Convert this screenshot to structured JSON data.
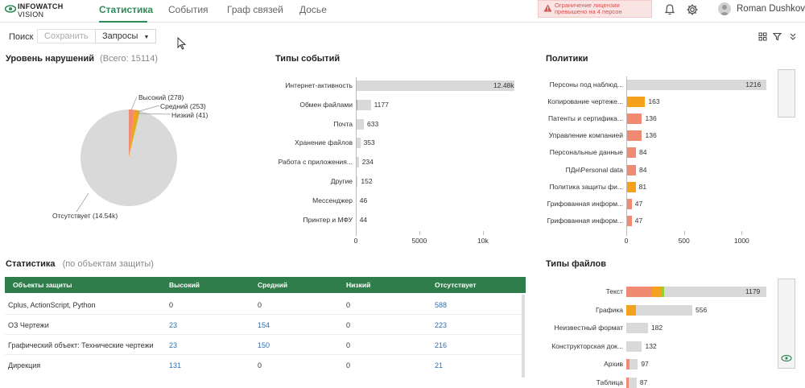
{
  "app": {
    "logo_line1": "INFOWATCH",
    "logo_line2": "VISION"
  },
  "nav": {
    "tabs": [
      "Статистика",
      "События",
      "Граф связей",
      "Досье"
    ]
  },
  "alert": {
    "line1": "Ограничение лицензии",
    "line2": "превышено на 4 персон"
  },
  "user": {
    "name": "Roman Dushkov"
  },
  "toolbar": {
    "search": "Поиск",
    "save": "Сохранить",
    "queries": "Запросы"
  },
  "violations": {
    "title": "Уровень нарушений",
    "total": "(Всего: 15114)",
    "labels": {
      "high": "Высокий (278)",
      "medium": "Средний (253)",
      "low": "Низкий (41)",
      "none": "Отсутствует (14.54k)"
    }
  },
  "event_types": {
    "title": "Типы событий",
    "ticks": [
      "0",
      "5000",
      "10k"
    ]
  },
  "policies": {
    "title": "Политики",
    "ticks": [
      "0",
      "500",
      "1000"
    ]
  },
  "file_types": {
    "title": "Типы файлов"
  },
  "stats": {
    "title": "Статистика",
    "subtitle": "(по объектам защиты)",
    "columns": [
      "Объекты защиты",
      "Высокий",
      "Средний",
      "Низкий",
      "Отсутствует"
    ],
    "rows": [
      [
        "Cplus, ActionScript, Python",
        "0",
        "0",
        "0",
        "588"
      ],
      [
        "ОЗ Чертежи",
        "23",
        "154",
        "0",
        "223"
      ],
      [
        "Графический объект: Технические чертежи",
        "23",
        "150",
        "0",
        "216"
      ],
      [
        "Дирекция",
        "131",
        "0",
        "0",
        "21"
      ]
    ]
  },
  "colors": {
    "accent": "#2e8b57",
    "table_header": "#2e7d4a",
    "high": "#f08a72",
    "medium": "#f4a21e",
    "low": "#9acd32",
    "none": "#d9d9d9"
  },
  "chart_data": [
    {
      "type": "pie",
      "title": "Уровень нарушений",
      "categories": [
        "Высокий",
        "Средний",
        "Низкий",
        "Отсутствует"
      ],
      "values": [
        278,
        253,
        41,
        14540
      ]
    },
    {
      "type": "bar",
      "title": "Типы событий",
      "orientation": "horizontal",
      "categories": [
        "Интернет-активность",
        "Обмен файлами",
        "Почта",
        "Хранение файлов",
        "Работа с приложения...",
        "Другие",
        "Мессенджер",
        "Принтер и МФУ"
      ],
      "series": [
        {
          "values": [
            0,
            35,
            0,
            0,
            0,
            0,
            0,
            0
          ]
        },
        {
          "values": [
            0,
            70,
            0,
            0,
            0,
            0,
            0,
            0
          ]
        },
        {
          "values": [
            12480,
            1072,
            633,
            353,
            234,
            152,
            46,
            44
          ]
        }
      ],
      "data_labels": [
        "12.48k",
        "1177",
        "633",
        "353",
        "234",
        "152",
        "46",
        "44"
      ],
      "xlim": [
        0,
        12480
      ],
      "xticks": [
        "0",
        "5000",
        "10k"
      ]
    },
    {
      "type": "bar",
      "title": "Политики",
      "orientation": "horizontal",
      "categories": [
        "Персоны под наблюд...",
        "Копирование чертеже...",
        "Патенты и сертифика...",
        "Управление компанией",
        "Персональные данные",
        "ПДн\\Personal data",
        "Политика защиты фи...",
        "Грифованная информ...",
        "Грифованная информ..."
      ],
      "series": [
        {
          "values": [
            0,
            0,
            136,
            136,
            84,
            84,
            0,
            47,
            47
          ]
        },
        {
          "values": [
            0,
            163,
            0,
            0,
            0,
            0,
            81,
            0,
            0
          ]
        },
        {
          "values": [
            1216,
            0,
            0,
            0,
            0,
            0,
            0,
            0,
            0
          ]
        }
      ],
      "data_labels": [
        "1216",
        "163",
        "136",
        "136",
        "84",
        "84",
        "81",
        "47",
        "47"
      ],
      "xlim": [
        0,
        1200
      ],
      "xticks": [
        "0",
        "500",
        "1000"
      ]
    },
    {
      "type": "bar",
      "title": "Типы файлов",
      "orientation": "horizontal",
      "categories": [
        "Текст",
        "Графика",
        "Неизвестный формат",
        "Конструкторская док...",
        "Архив",
        "Таблица"
      ],
      "series": [
        {
          "values": [
            220,
            0,
            0,
            0,
            20,
            20
          ]
        },
        {
          "values": [
            80,
            80,
            0,
            0,
            5,
            0
          ]
        },
        {
          "values": [
            20,
            0,
            0,
            0,
            0,
            0
          ]
        },
        {
          "values": [
            859,
            476,
            182,
            132,
            72,
            67
          ]
        }
      ],
      "data_labels": [
        "1179",
        "556",
        "182",
        "132",
        "97",
        "87"
      ],
      "xlim": [
        0,
        1179
      ]
    }
  ]
}
